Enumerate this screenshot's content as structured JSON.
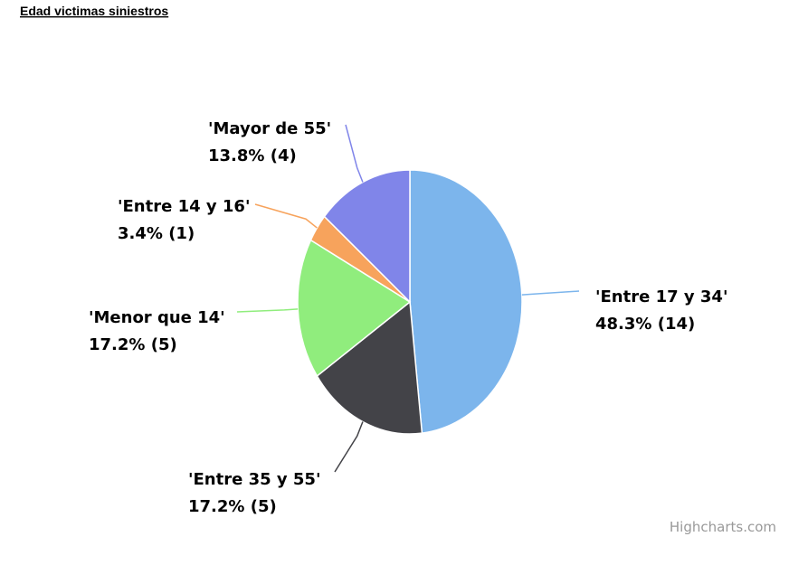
{
  "chart_data": {
    "type": "pie",
    "title": "Edad victimas siniestros",
    "categories": [
      "'Entre 17 y 34'",
      "'Entre 35 y 55'",
      "'Menor que 14'",
      "'Entre 14 y 16'",
      "'Mayor de 55'"
    ],
    "values": [
      14,
      5,
      5,
      1,
      4
    ],
    "value_labels": [
      "48.3% (14)",
      "17.2% (5)",
      "17.2% (5)",
      "3.4% (1)",
      "13.8% (4)"
    ],
    "colors": [
      "#7cb5ec",
      "#434348",
      "#90ed7d",
      "#f7a35c",
      "#8085e9"
    ],
    "credits": "Highcharts.com"
  }
}
